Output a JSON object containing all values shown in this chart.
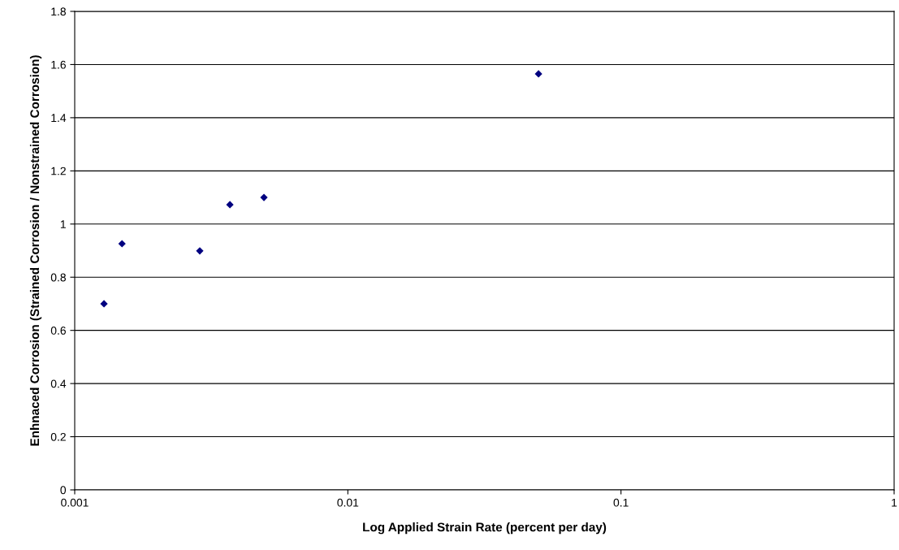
{
  "chart_data": {
    "type": "scatter",
    "xlabel": "Log Applied Strain Rate (percent per day)",
    "ylabel": "Enhnaced Corrosion (Strained Corrosion / Nonstrained Corrosion)",
    "x": [
      0.00128,
      0.00149,
      0.00287,
      0.0037,
      0.00493,
      0.0499
    ],
    "values": [
      0.7,
      0.926,
      0.899,
      1.073,
      1.1,
      1.565
    ],
    "color": "#000080",
    "marker": "diamond",
    "log": "x",
    "xlim": [
      0.001,
      1
    ],
    "xticks": [
      0.001,
      0.01,
      0.1,
      1
    ],
    "ylim": [
      0,
      1.8
    ],
    "yticks": [
      0,
      0.2,
      0.4,
      0.6,
      0.8,
      1,
      1.2,
      1.4,
      1.6,
      1.8
    ],
    "grid": "y",
    "legend": false
  }
}
